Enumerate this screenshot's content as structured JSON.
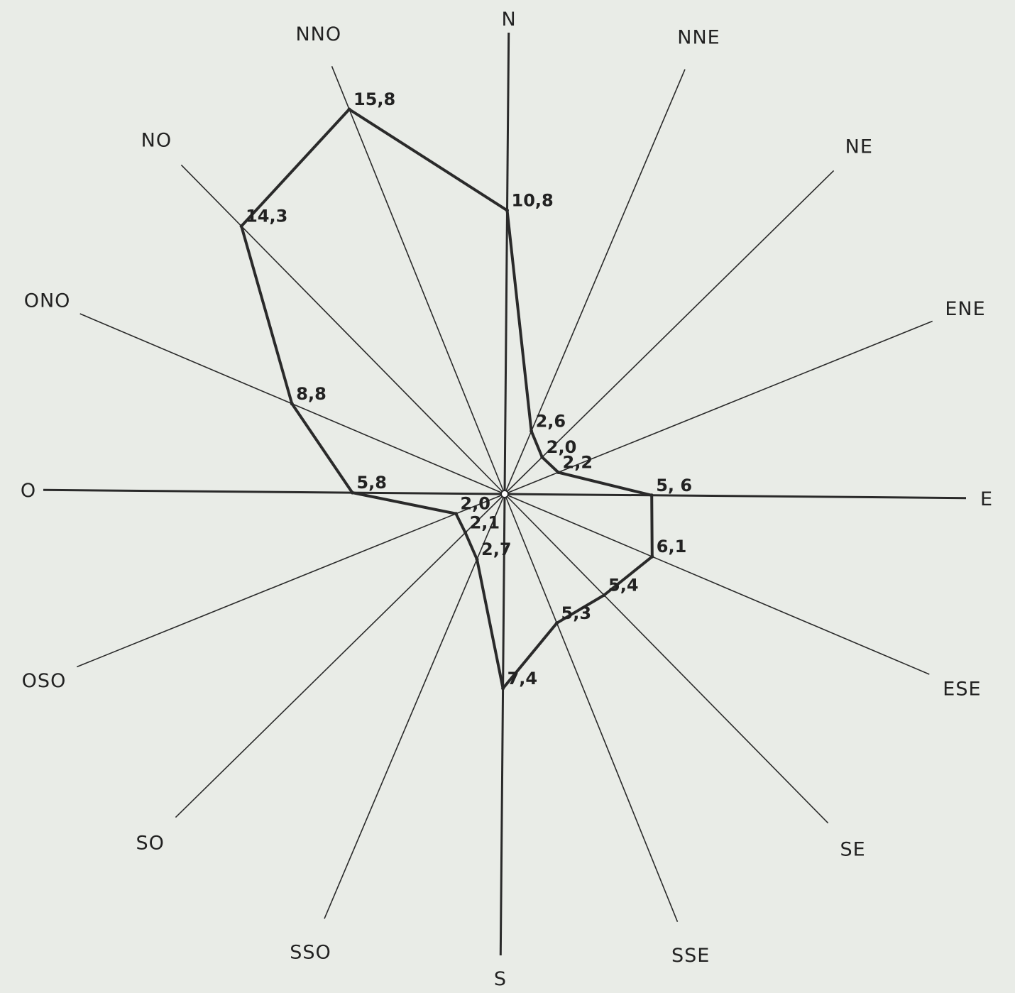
{
  "chart_data": {
    "type": "radar",
    "title": "",
    "directions": [
      "N",
      "NNE",
      "NE",
      "ENE",
      "E",
      "ESE",
      "SE",
      "SSE",
      "S",
      "SSO",
      "SO",
      "OSO",
      "O",
      "ONO",
      "NO",
      "NNO"
    ],
    "series": [
      {
        "values": [
          10.8,
          2.6,
          2.0,
          2.2,
          5.6,
          6.1,
          5.4,
          5.3,
          7.4,
          2.7,
          2.1,
          2.0,
          5.8,
          8.8,
          14.3,
          15.8
        ]
      }
    ],
    "value_labels": [
      "10,8",
      "2,6",
      "2,0",
      "2,2",
      "5, 6",
      "6,1",
      "5,4",
      "5,3",
      "7,4",
      "2,7",
      "2,1",
      "2,0",
      "5,8",
      "8,8",
      "14,3",
      "15,8"
    ],
    "grid": false,
    "legend": "none"
  }
}
